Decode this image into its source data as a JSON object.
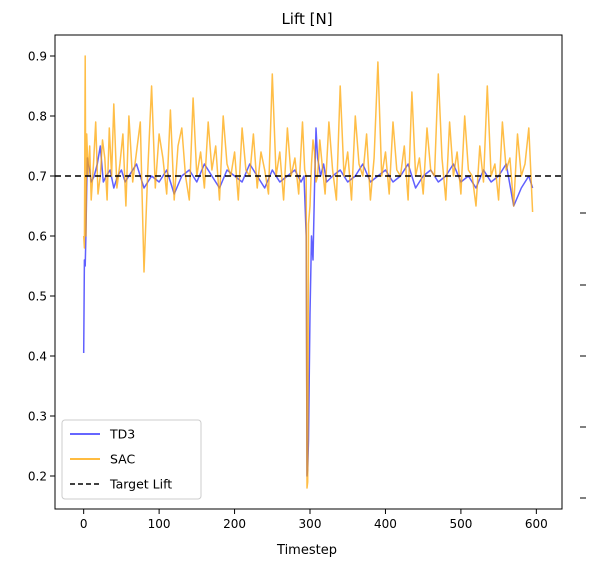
{
  "chart_data": {
    "type": "line",
    "title": "Lift [N]",
    "xlabel": "Timestep",
    "ylabel": "",
    "xlim": [
      -38,
      634
    ],
    "ylim": [
      0.145,
      0.935
    ],
    "x_ticks": [
      0,
      100,
      200,
      300,
      400,
      500,
      600
    ],
    "y_ticks": [
      0.2,
      0.3,
      0.4,
      0.5,
      0.6,
      0.7,
      0.8,
      0.9
    ],
    "x_tick_labels": [
      "0",
      "100",
      "200",
      "300",
      "400",
      "500",
      "600"
    ],
    "y_tick_labels": [
      "0.2",
      "0.3",
      "0.4",
      "0.5",
      "0.6",
      "0.7",
      "0.8",
      "0.9"
    ],
    "legend_position": "lower-left",
    "grid": false,
    "series": [
      {
        "name": "TD3",
        "color": "#3333ff",
        "x": [
          0,
          1,
          2,
          3,
          4,
          5,
          6,
          8,
          10,
          14,
          18,
          22,
          26,
          30,
          35,
          40,
          45,
          50,
          55,
          60,
          70,
          80,
          90,
          100,
          110,
          120,
          130,
          140,
          150,
          160,
          170,
          180,
          190,
          200,
          210,
          220,
          230,
          240,
          250,
          260,
          270,
          280,
          288,
          292,
          295,
          296,
          297,
          298,
          300,
          302,
          304,
          306,
          308,
          310,
          314,
          318,
          322,
          330,
          340,
          350,
          360,
          370,
          380,
          390,
          400,
          410,
          420,
          430,
          440,
          450,
          460,
          470,
          480,
          490,
          500,
          510,
          520,
          530,
          540,
          550,
          560,
          570,
          580,
          590,
          595
        ],
        "y": [
          0.405,
          0.56,
          0.55,
          0.6,
          0.68,
          0.73,
          0.72,
          0.71,
          0.69,
          0.7,
          0.72,
          0.75,
          0.69,
          0.7,
          0.71,
          0.68,
          0.7,
          0.71,
          0.69,
          0.7,
          0.72,
          0.68,
          0.7,
          0.69,
          0.71,
          0.67,
          0.7,
          0.71,
          0.69,
          0.72,
          0.7,
          0.68,
          0.71,
          0.7,
          0.69,
          0.72,
          0.7,
          0.68,
          0.71,
          0.69,
          0.7,
          0.71,
          0.69,
          0.7,
          0.6,
          0.2,
          0.21,
          0.26,
          0.47,
          0.6,
          0.56,
          0.68,
          0.78,
          0.73,
          0.7,
          0.72,
          0.69,
          0.7,
          0.71,
          0.69,
          0.7,
          0.72,
          0.69,
          0.7,
          0.71,
          0.69,
          0.7,
          0.72,
          0.68,
          0.7,
          0.71,
          0.69,
          0.7,
          0.72,
          0.69,
          0.7,
          0.68,
          0.71,
          0.69,
          0.7,
          0.72,
          0.65,
          0.68,
          0.7,
          0.68
        ]
      },
      {
        "name": "SAC",
        "color": "#ffa500",
        "x": [
          0,
          1,
          2,
          3,
          4,
          6,
          8,
          10,
          13,
          16,
          19,
          22,
          25,
          28,
          31,
          34,
          37,
          40,
          44,
          48,
          52,
          56,
          60,
          65,
          70,
          75,
          80,
          85,
          90,
          95,
          100,
          105,
          110,
          115,
          120,
          125,
          130,
          135,
          140,
          145,
          150,
          155,
          160,
          165,
          170,
          175,
          180,
          185,
          190,
          195,
          200,
          205,
          210,
          215,
          220,
          225,
          230,
          235,
          240,
          245,
          250,
          255,
          260,
          265,
          270,
          275,
          280,
          285,
          290,
          293,
          295,
          296,
          297,
          298,
          300,
          302,
          304,
          306,
          308,
          310,
          313,
          316,
          320,
          325,
          330,
          335,
          340,
          345,
          350,
          355,
          360,
          365,
          370,
          375,
          380,
          385,
          390,
          395,
          400,
          405,
          410,
          415,
          420,
          425,
          430,
          435,
          440,
          445,
          450,
          455,
          460,
          465,
          470,
          475,
          480,
          485,
          490,
          495,
          500,
          505,
          510,
          515,
          520,
          525,
          530,
          535,
          540,
          545,
          550,
          555,
          560,
          565,
          570,
          575,
          580,
          585,
          590,
          595
        ],
        "y": [
          0.6,
          0.58,
          0.9,
          0.6,
          0.77,
          0.7,
          0.75,
          0.66,
          0.72,
          0.79,
          0.67,
          0.7,
          0.76,
          0.73,
          0.66,
          0.78,
          0.7,
          0.82,
          0.68,
          0.72,
          0.77,
          0.65,
          0.8,
          0.69,
          0.74,
          0.79,
          0.54,
          0.71,
          0.85,
          0.68,
          0.77,
          0.73,
          0.67,
          0.81,
          0.66,
          0.75,
          0.78,
          0.7,
          0.66,
          0.83,
          0.7,
          0.74,
          0.68,
          0.79,
          0.71,
          0.75,
          0.66,
          0.8,
          0.72,
          0.7,
          0.74,
          0.66,
          0.78,
          0.71,
          0.7,
          0.77,
          0.68,
          0.74,
          0.71,
          0.67,
          0.87,
          0.7,
          0.74,
          0.66,
          0.78,
          0.7,
          0.73,
          0.67,
          0.79,
          0.71,
          0.7,
          0.18,
          0.19,
          0.62,
          0.65,
          0.72,
          0.76,
          0.74,
          0.69,
          0.7,
          0.76,
          0.72,
          0.67,
          0.79,
          0.71,
          0.66,
          0.85,
          0.7,
          0.74,
          0.66,
          0.8,
          0.72,
          0.7,
          0.77,
          0.66,
          0.73,
          0.89,
          0.7,
          0.74,
          0.67,
          0.79,
          0.71,
          0.7,
          0.75,
          0.66,
          0.84,
          0.7,
          0.73,
          0.67,
          0.78,
          0.71,
          0.7,
          0.87,
          0.73,
          0.66,
          0.79,
          0.7,
          0.74,
          0.67,
          0.8,
          0.71,
          0.7,
          0.65,
          0.75,
          0.69,
          0.85,
          0.7,
          0.72,
          0.66,
          0.79,
          0.71,
          0.73,
          0.65,
          0.77,
          0.7,
          0.72,
          0.78,
          0.64
        ]
      },
      {
        "name": "Target Lift",
        "color": "#000000",
        "dash": "dashed",
        "y_constant": 0.7
      }
    ]
  }
}
